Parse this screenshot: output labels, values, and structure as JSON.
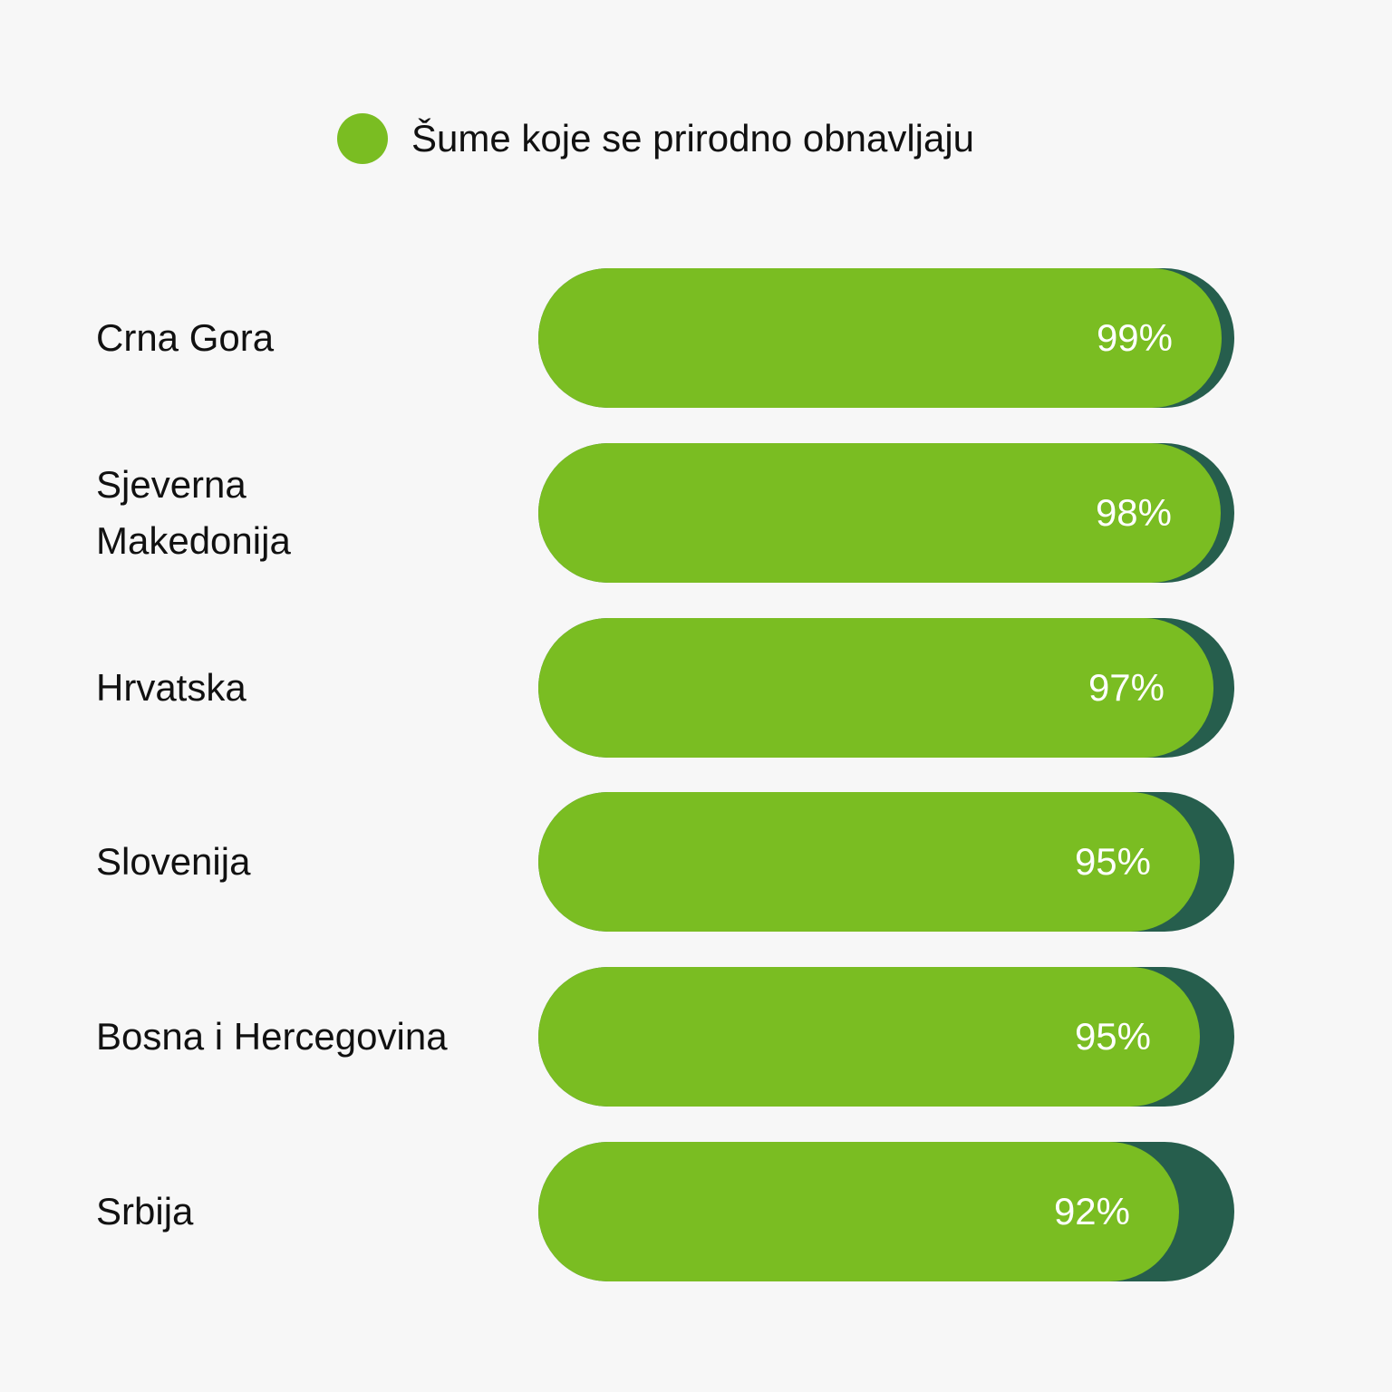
{
  "colors": {
    "background": "#f7f7f7",
    "bar_fill": "#7abd22",
    "bar_track": "#265e4d",
    "label_text": "#111111",
    "value_text": "#ffffff"
  },
  "legend": {
    "label": "Šume koje se prirodno obnavljaju"
  },
  "chart_data": {
    "type": "bar",
    "orientation": "horizontal",
    "categories": [
      "Crna Gora",
      "Sjeverna Makedonija",
      "Hrvatska",
      "Slovenija",
      "Bosna i Hercegovina",
      "Srbija"
    ],
    "category_lines": [
      [
        "Crna Gora"
      ],
      [
        "Sjeverna",
        "Makedonija"
      ],
      [
        "Hrvatska"
      ],
      [
        "Slovenija"
      ],
      [
        "Bosna i Hercegovina"
      ],
      [
        "Srbija"
      ]
    ],
    "series": [
      {
        "name": "Šume koje se prirodno obnavljaju",
        "values": [
          99,
          98,
          97,
          95,
          95,
          92
        ]
      }
    ],
    "value_labels": [
      "99%",
      "98%",
      "97%",
      "95%",
      "95%",
      "92%"
    ],
    "xlim": [
      0,
      100
    ],
    "grid": false,
    "legend_position": "top-center"
  }
}
